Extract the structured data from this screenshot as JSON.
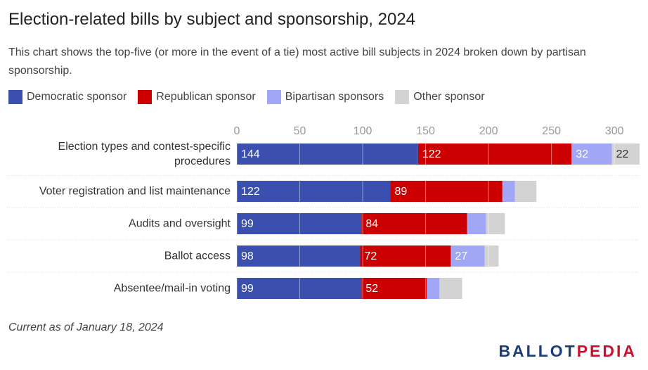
{
  "chart_data": {
    "type": "stacked-bar-horizontal",
    "title": "Election-related bills by subject and sponsorship, 2024",
    "subtitle": "This chart shows the top-five (or more in the event of a tie) most active bill subjects in 2024 broken down by partisan sponsorship.",
    "categories": [
      "Election types and contest-specific procedures",
      "Voter registration and list maintenance",
      "Audits and oversight",
      "Ballot access",
      "Absentee/mail-in voting"
    ],
    "series": [
      {
        "name": "Democratic sponsor",
        "color": "#3a4fae",
        "values": [
          144,
          122,
          99,
          98,
          99
        ]
      },
      {
        "name": "Republican sponsor",
        "color": "#cc0000",
        "values": [
          122,
          89,
          84,
          72,
          52
        ]
      },
      {
        "name": "Bipartisan sponsors",
        "color": "#a1a6f5",
        "values": [
          32,
          10,
          15,
          27,
          10
        ]
      },
      {
        "name": "Other sponsor",
        "color": "#d3d3d3",
        "values": [
          22,
          17,
          15,
          11,
          18
        ]
      }
    ],
    "xlim": [
      0,
      320
    ],
    "xticks": [
      0,
      50,
      100,
      150,
      200,
      250,
      300
    ],
    "grid": true,
    "note": "Current as of January 18, 2024",
    "logo": [
      "BALLOT",
      "PEDIA"
    ]
  }
}
